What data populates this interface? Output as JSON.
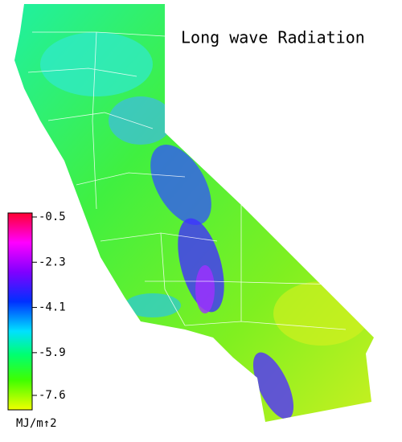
{
  "title": "Long wave Radiation",
  "colorbar": {
    "ticks": [
      -0.5,
      -2.3,
      -4.1,
      -5.9,
      -7.6
    ],
    "unit": "MJ/m↑2"
  }
}
